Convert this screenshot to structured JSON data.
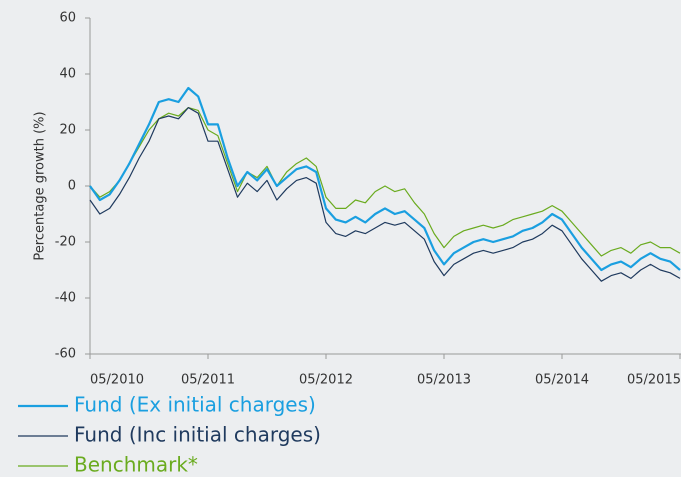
{
  "chart_data": {
    "type": "line",
    "y_label": "Percentage growth (%)",
    "x": [
      0,
      1,
      2,
      3,
      4,
      5,
      6,
      7,
      8,
      9,
      10,
      11,
      12,
      13,
      14,
      15,
      16,
      17,
      18,
      19,
      20,
      21,
      22,
      23,
      24,
      25,
      26,
      27,
      28,
      29,
      30,
      31,
      32,
      33,
      34,
      35,
      36,
      37,
      38,
      39,
      40,
      41,
      42,
      43,
      44,
      45,
      46,
      47,
      48,
      49,
      50,
      51,
      52,
      53,
      54,
      55,
      56,
      57,
      58,
      59,
      60
    ],
    "series": [
      {
        "name": "Fund (Ex initial charges)",
        "color": "#1a9fe0",
        "width": 2.2,
        "values": [
          0,
          -5,
          -3,
          2,
          8,
          15,
          22,
          30,
          31,
          30,
          35,
          32,
          22,
          22,
          10,
          0,
          5,
          2,
          6,
          0,
          3,
          6,
          7,
          5,
          -8,
          -12,
          -13,
          -11,
          -13,
          -10,
          -8,
          -10,
          -9,
          -12,
          -15,
          -23,
          -28,
          -24,
          -22,
          -20,
          -19,
          -20,
          -19,
          -18,
          -16,
          -15,
          -13,
          -10,
          -12,
          -17,
          -22,
          -26,
          -30,
          -28,
          -27,
          -29,
          -26,
          -24,
          -26,
          -27,
          -30
        ]
      },
      {
        "name": "Fund (Inc initial charges)",
        "color": "#1f3a5e",
        "width": 1.2,
        "values": [
          -5,
          -10,
          -8,
          -3,
          3,
          10,
          16,
          24,
          25,
          24,
          28,
          26,
          16,
          16,
          6,
          -4,
          1,
          -2,
          2,
          -5,
          -1,
          2,
          3,
          1,
          -13,
          -17,
          -18,
          -16,
          -17,
          -15,
          -13,
          -14,
          -13,
          -16,
          -19,
          -27,
          -32,
          -28,
          -26,
          -24,
          -23,
          -24,
          -23,
          -22,
          -20,
          -19,
          -17,
          -14,
          -16,
          -21,
          -26,
          -30,
          -34,
          -32,
          -31,
          -33,
          -30,
          -28,
          -30,
          -31,
          -33
        ]
      },
      {
        "name": "Benchmark*",
        "color": "#6aab1f",
        "width": 1.2,
        "values": [
          0,
          -4,
          -2,
          2,
          8,
          14,
          20,
          24,
          26,
          25,
          28,
          27,
          20,
          18,
          8,
          -2,
          5,
          3,
          7,
          0,
          5,
          8,
          10,
          7,
          -4,
          -8,
          -8,
          -5,
          -6,
          -2,
          0,
          -2,
          -1,
          -6,
          -10,
          -17,
          -22,
          -18,
          -16,
          -15,
          -14,
          -15,
          -14,
          -12,
          -11,
          -10,
          -9,
          -7,
          -9,
          -13,
          -17,
          -21,
          -25,
          -23,
          -22,
          -24,
          -21,
          -20,
          -22,
          -22,
          -24
        ]
      }
    ],
    "xlim": [
      0,
      60
    ],
    "xticks": [
      {
        "value": 0,
        "label": "05/2010"
      },
      {
        "value": 12,
        "label": "05/2011"
      },
      {
        "value": 24,
        "label": "05/2012"
      },
      {
        "value": 36,
        "label": "05/2013"
      },
      {
        "value": 48,
        "label": "05/2014"
      },
      {
        "value": 60,
        "label": "05/2015"
      }
    ],
    "ylim": [
      -60,
      60
    ],
    "yticks": [
      -60,
      -40,
      -20,
      0,
      20,
      40,
      60
    ],
    "grid": false
  }
}
